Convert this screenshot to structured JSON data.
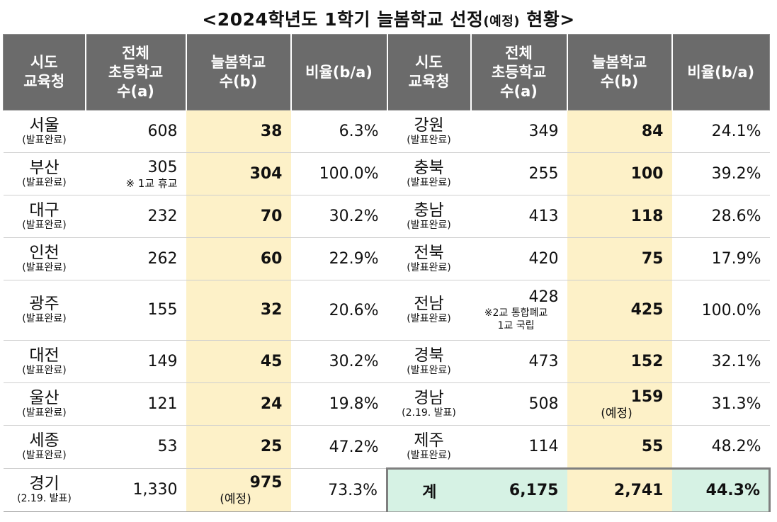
{
  "title": {
    "main_a": "<2024학년도 1학기 늘봄학교 선정",
    "main_small": "(예정)",
    "main_b": " 현황>"
  },
  "headers": {
    "region_l1": "시도",
    "region_l2": "교육청",
    "total_l1": "전체",
    "total_l2": "초등학교",
    "total_l3": "수(a)",
    "nb_l1": "늘봄학교",
    "nb_l2": "수(b)",
    "ratio": "비율(b/a)"
  },
  "left": [
    {
      "name": "서울",
      "sub": "(발표완료)",
      "total": "608",
      "note": "",
      "nb": "38",
      "nb_sub": "",
      "ratio": "6.3%"
    },
    {
      "name": "부산",
      "sub": "(발표완료)",
      "total": "305",
      "note": "※ 1교 휴교",
      "nb": "304",
      "nb_sub": "",
      "ratio": "100.0%"
    },
    {
      "name": "대구",
      "sub": "(발표완료)",
      "total": "232",
      "note": "",
      "nb": "70",
      "nb_sub": "",
      "ratio": "30.2%"
    },
    {
      "name": "인천",
      "sub": "(발표완료)",
      "total": "262",
      "note": "",
      "nb": "60",
      "nb_sub": "",
      "ratio": "22.9%"
    },
    {
      "name": "광주",
      "sub": "(발표완료)",
      "total": "155",
      "note": "",
      "nb": "32",
      "nb_sub": "",
      "ratio": "20.6%"
    },
    {
      "name": "대전",
      "sub": "(발표완료)",
      "total": "149",
      "note": "",
      "nb": "45",
      "nb_sub": "",
      "ratio": "30.2%"
    },
    {
      "name": "울산",
      "sub": "(발표완료)",
      "total": "121",
      "note": "",
      "nb": "24",
      "nb_sub": "",
      "ratio": "19.8%"
    },
    {
      "name": "세종",
      "sub": "(발표완료)",
      "total": "53",
      "note": "",
      "nb": "25",
      "nb_sub": "",
      "ratio": "47.2%"
    },
    {
      "name": "경기",
      "sub": "(2.19. 발표)",
      "total": "1,330",
      "note": "",
      "nb": "975",
      "nb_sub": "(예정)",
      "ratio": "73.3%"
    }
  ],
  "right": [
    {
      "name": "강원",
      "sub": "(발표완료)",
      "total": "349",
      "note1": "",
      "note2": "",
      "nb": "84",
      "nb_sub": "",
      "ratio": "24.1%"
    },
    {
      "name": "충북",
      "sub": "(발표완료)",
      "total": "255",
      "note1": "",
      "note2": "",
      "nb": "100",
      "nb_sub": "",
      "ratio": "39.2%"
    },
    {
      "name": "충남",
      "sub": "(발표완료)",
      "total": "413",
      "note1": "",
      "note2": "",
      "nb": "118",
      "nb_sub": "",
      "ratio": "28.6%"
    },
    {
      "name": "전북",
      "sub": "(발표완료)",
      "total": "420",
      "note1": "",
      "note2": "",
      "nb": "75",
      "nb_sub": "",
      "ratio": "17.9%"
    },
    {
      "name": "전남",
      "sub": "(발표완료)",
      "total": "428",
      "note1": "※2교 통합폐교",
      "note2": "1교 국립",
      "nb": "425",
      "nb_sub": "",
      "ratio": "100.0%"
    },
    {
      "name": "경북",
      "sub": "(발표완료)",
      "total": "473",
      "note1": "",
      "note2": "",
      "nb": "152",
      "nb_sub": "",
      "ratio": "32.1%"
    },
    {
      "name": "경남",
      "sub": "(2.19. 발표)",
      "total": "508",
      "note1": "",
      "note2": "",
      "nb": "159",
      "nb_sub": "(예정)",
      "ratio": "31.3%"
    },
    {
      "name": "제주",
      "sub": "(발표완료)",
      "total": "114",
      "note1": "",
      "note2": "",
      "nb": "55",
      "nb_sub": "",
      "ratio": "48.2%"
    }
  ],
  "sum": {
    "label": "계",
    "total": "6,175",
    "nb": "2,741",
    "ratio": "44.3%"
  }
}
